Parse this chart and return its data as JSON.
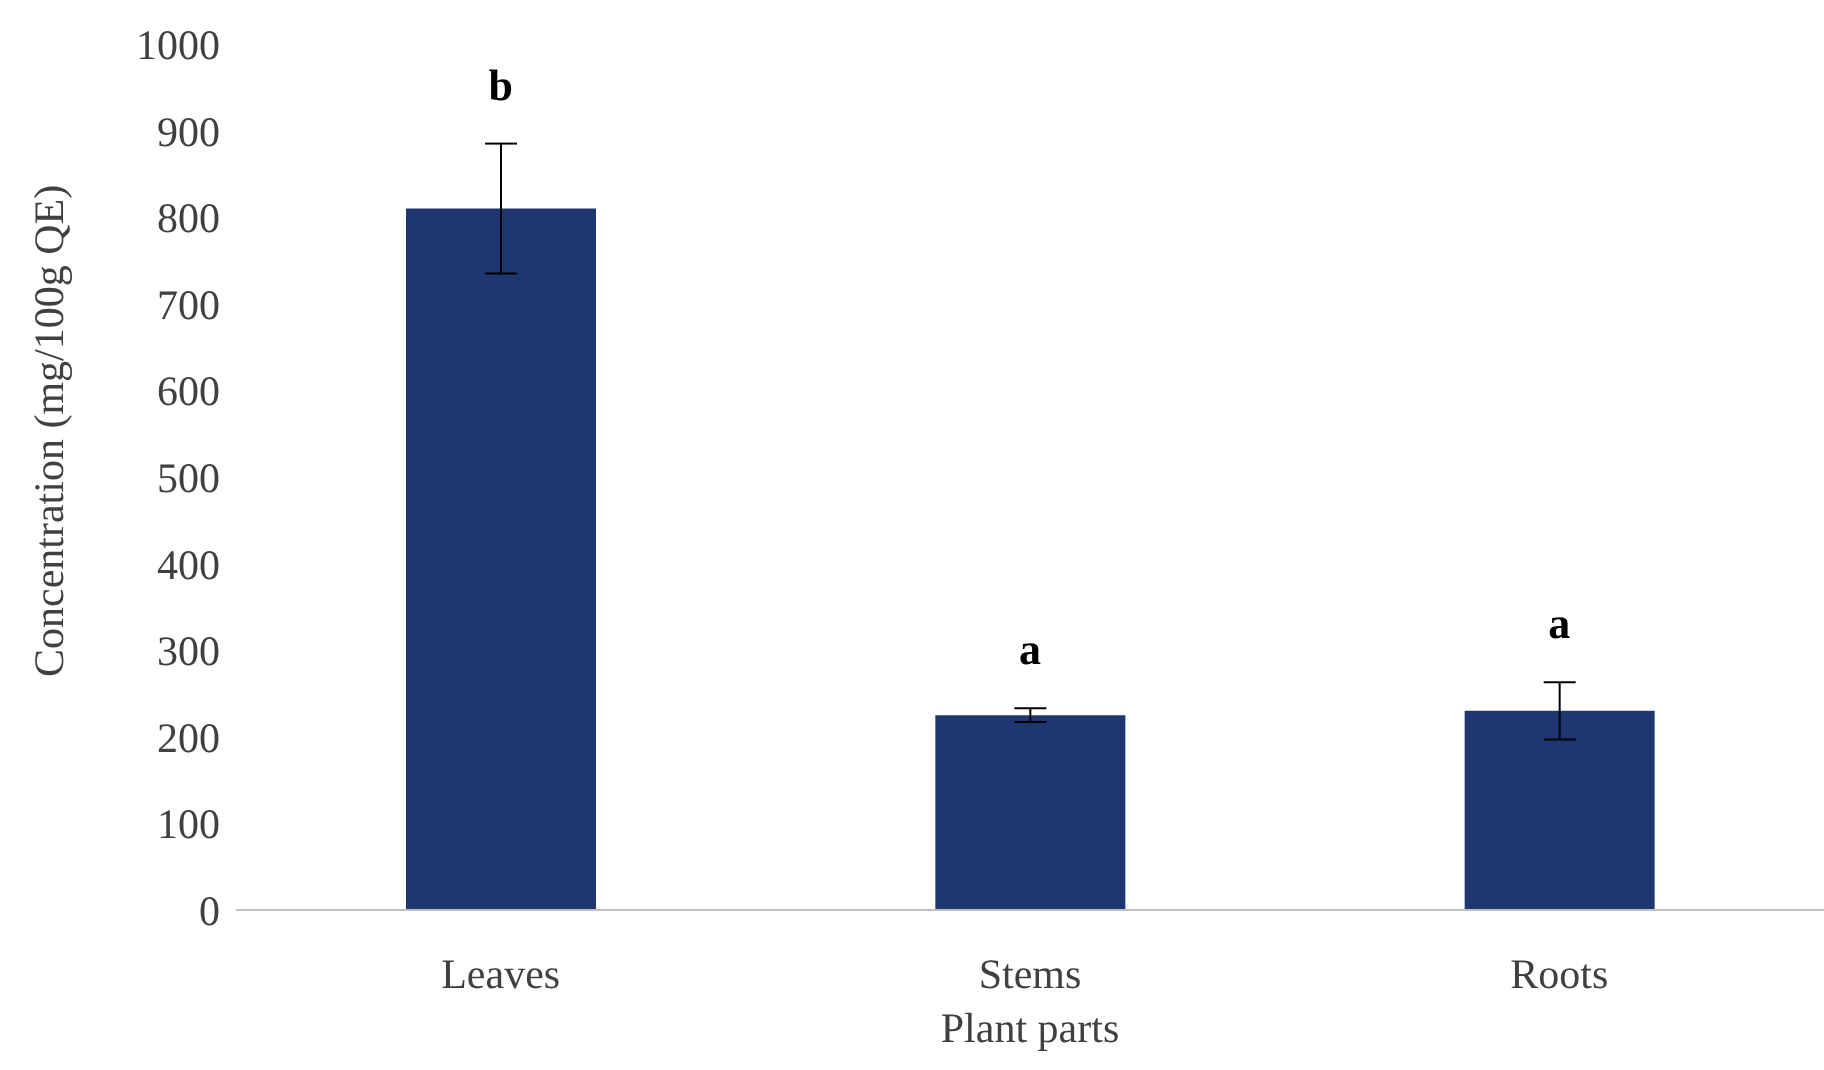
{
  "chart_data": {
    "type": "bar",
    "xlabel": "Plant parts",
    "ylabel": "Concentration (mg/100g QE)",
    "categories": [
      "Leaves",
      "Stems",
      "Roots"
    ],
    "values": [
      810,
      225,
      230
    ],
    "errors": [
      75,
      8,
      33
    ],
    "color": "#1f3771",
    "ylim": [
      0,
      1000
    ],
    "yticks": [
      0,
      100,
      200,
      300,
      400,
      500,
      600,
      700,
      800,
      900,
      1000
    ],
    "grid": false,
    "legend": false,
    "annotations": [
      "b",
      "a",
      "a"
    ]
  }
}
